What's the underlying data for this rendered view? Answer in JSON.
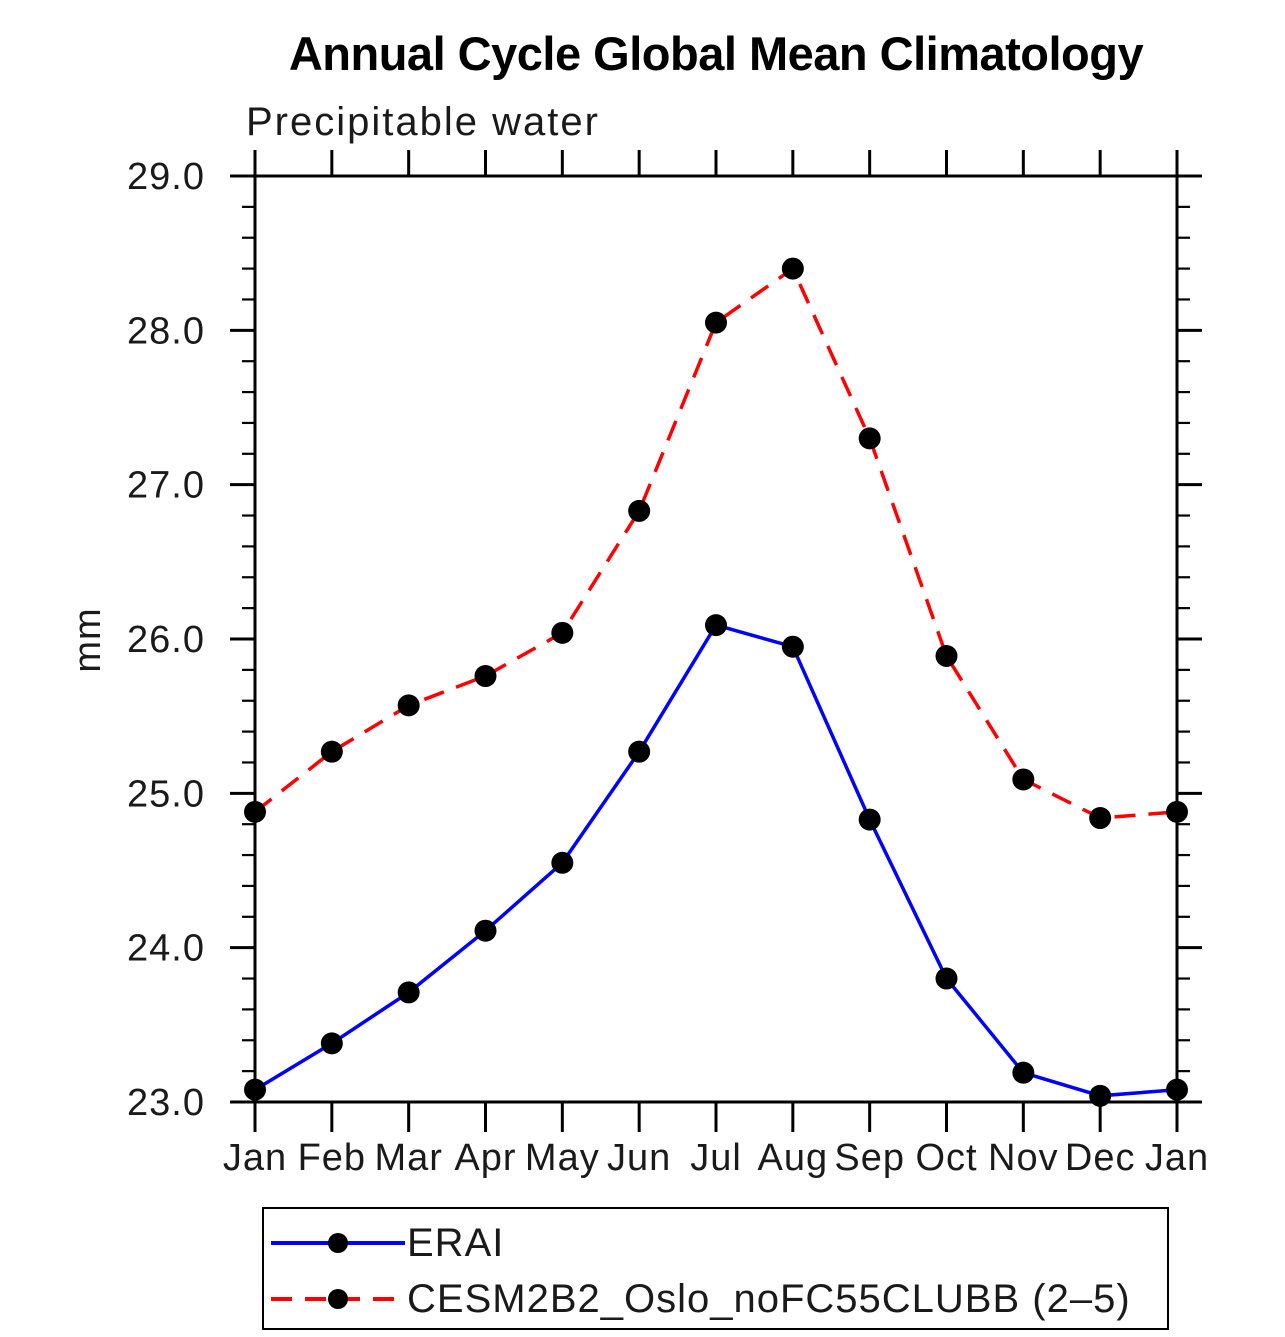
{
  "page": {
    "background": "#ffffff"
  },
  "chart_data": {
    "type": "line",
    "title": "Annual Cycle Global Mean Climatology",
    "subtitle": "Precipitable water",
    "ylabel": "mm",
    "x_categories": [
      "Jan",
      "Feb",
      "Mar",
      "Apr",
      "May",
      "Jun",
      "Jul",
      "Aug",
      "Sep",
      "Oct",
      "Nov",
      "Dec",
      "Jan"
    ],
    "ylim": [
      23.0,
      29.0
    ],
    "ytick_major_step": 1.0,
    "ytick_minor_step": 0.2,
    "ytick_labels": [
      "23.0",
      "24.0",
      "25.0",
      "26.0",
      "27.0",
      "28.0",
      "29.0"
    ],
    "grid": false,
    "legend_position": "bottom-left box",
    "marker": {
      "shape": "circle",
      "color": "#000000"
    },
    "series": [
      {
        "key": "erai",
        "name": "ERAI",
        "color": "#0000ff",
        "line_style": "solid",
        "dasharray": "none",
        "values": [
          23.08,
          23.38,
          23.71,
          24.11,
          24.55,
          25.27,
          26.09,
          25.95,
          24.83,
          23.8,
          23.19,
          23.04,
          23.08
        ]
      },
      {
        "key": "cesm",
        "name": "CESM2B2_Oslo_noFC55CLUBB (2–5)",
        "color": "#ff0000",
        "line_style": "dashed",
        "dasharray": "21 13",
        "values": [
          24.88,
          25.27,
          25.57,
          25.76,
          26.04,
          26.83,
          28.05,
          28.4,
          27.3,
          25.89,
          25.09,
          24.84,
          24.88
        ]
      }
    ]
  }
}
